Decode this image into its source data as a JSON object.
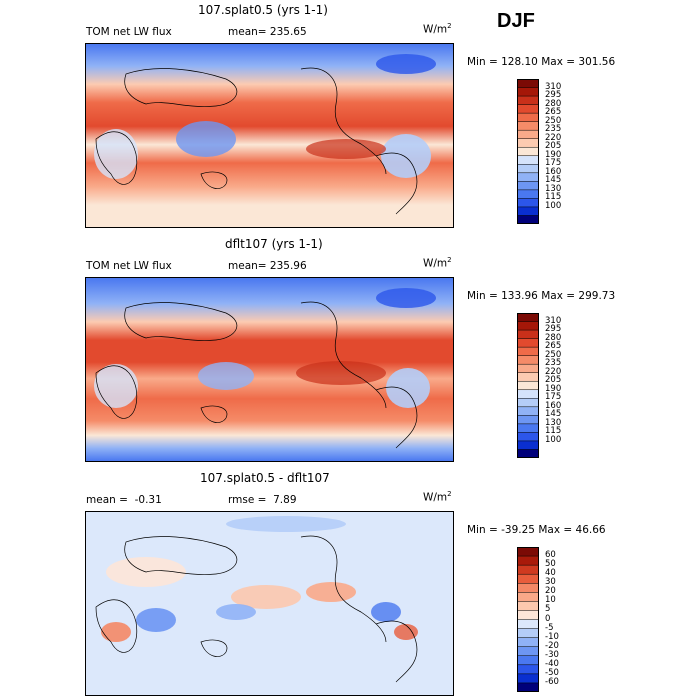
{
  "season": "DJF",
  "colors": {
    "abs_scale": [
      "#00007a",
      "#0a2fd0",
      "#2c56ea",
      "#4a78f0",
      "#6d96f3",
      "#90b2f6",
      "#b4cdf8",
      "#d5e3fb",
      "#fbe7d6",
      "#fccbb1",
      "#f9aa8a",
      "#f58b68",
      "#ef6b49",
      "#e24a2e",
      "#c9301a",
      "#a51708",
      "#7b0a05"
    ],
    "diff_scale": [
      "#00007a",
      "#0a2fd0",
      "#2c56ea",
      "#4a78f0",
      "#6d96f3",
      "#90b2f6",
      "#b4cdf8",
      "#dce8fb",
      "#fde6d8",
      "#fcc8ae",
      "#f9a888",
      "#f48866",
      "#e85d3c",
      "#cf3a20",
      "#a91a0a",
      "#7b0a05"
    ]
  },
  "panels": [
    {
      "title": "107.splat0.5 (yrs 1-1)",
      "left_label": "TOM net LW flux",
      "stat_label": "mean=",
      "stat_value": "235.65",
      "units": "W/m",
      "units_exp": "2",
      "min_label": "Min =",
      "min_value": "128.10",
      "max_label": "Max =",
      "max_value": "301.56"
    },
    {
      "title": "dflt107 (yrs 1-1)",
      "left_label": "TOM net LW flux",
      "stat_label": "mean=",
      "stat_value": "235.96",
      "units": "W/m",
      "units_exp": "2",
      "min_label": "Min =",
      "min_value": "133.96",
      "max_label": "Max =",
      "max_value": "299.73"
    },
    {
      "title": "107.splat0.5 - dflt107",
      "left_label": "mean =",
      "left_value": "-0.31",
      "stat_label": "rmse =",
      "stat_value": "7.89",
      "units": "W/m",
      "units_exp": "2",
      "min_label": "Min =",
      "min_value": "-39.25",
      "max_label": "Max =",
      "max_value": "46.66"
    }
  ],
  "chart_data": [
    {
      "type": "heatmap",
      "title": "107.splat0.5 (yrs 1-1)",
      "variable": "TOM net LW flux",
      "units": "W/m^2",
      "mean": 235.65,
      "min": 128.1,
      "max": 301.56,
      "colorbar_levels": [
        100,
        115,
        130,
        145,
        160,
        175,
        190,
        205,
        220,
        235,
        250,
        265,
        280,
        295,
        310
      ]
    },
    {
      "type": "heatmap",
      "title": "dflt107 (yrs 1-1)",
      "variable": "TOM net LW flux",
      "units": "W/m^2",
      "mean": 235.96,
      "min": 133.96,
      "max": 299.73,
      "colorbar_levels": [
        100,
        115,
        130,
        145,
        160,
        175,
        190,
        205,
        220,
        235,
        250,
        265,
        280,
        295,
        310
      ]
    },
    {
      "type": "heatmap",
      "title": "107.splat0.5 - dflt107",
      "units": "W/m^2",
      "mean": -0.31,
      "rmse": 7.89,
      "min": -39.25,
      "max": 46.66,
      "colorbar_levels": [
        -60,
        -50,
        -40,
        -30,
        -20,
        -10,
        -5,
        0,
        5,
        10,
        20,
        30,
        40,
        50,
        60
      ]
    }
  ]
}
